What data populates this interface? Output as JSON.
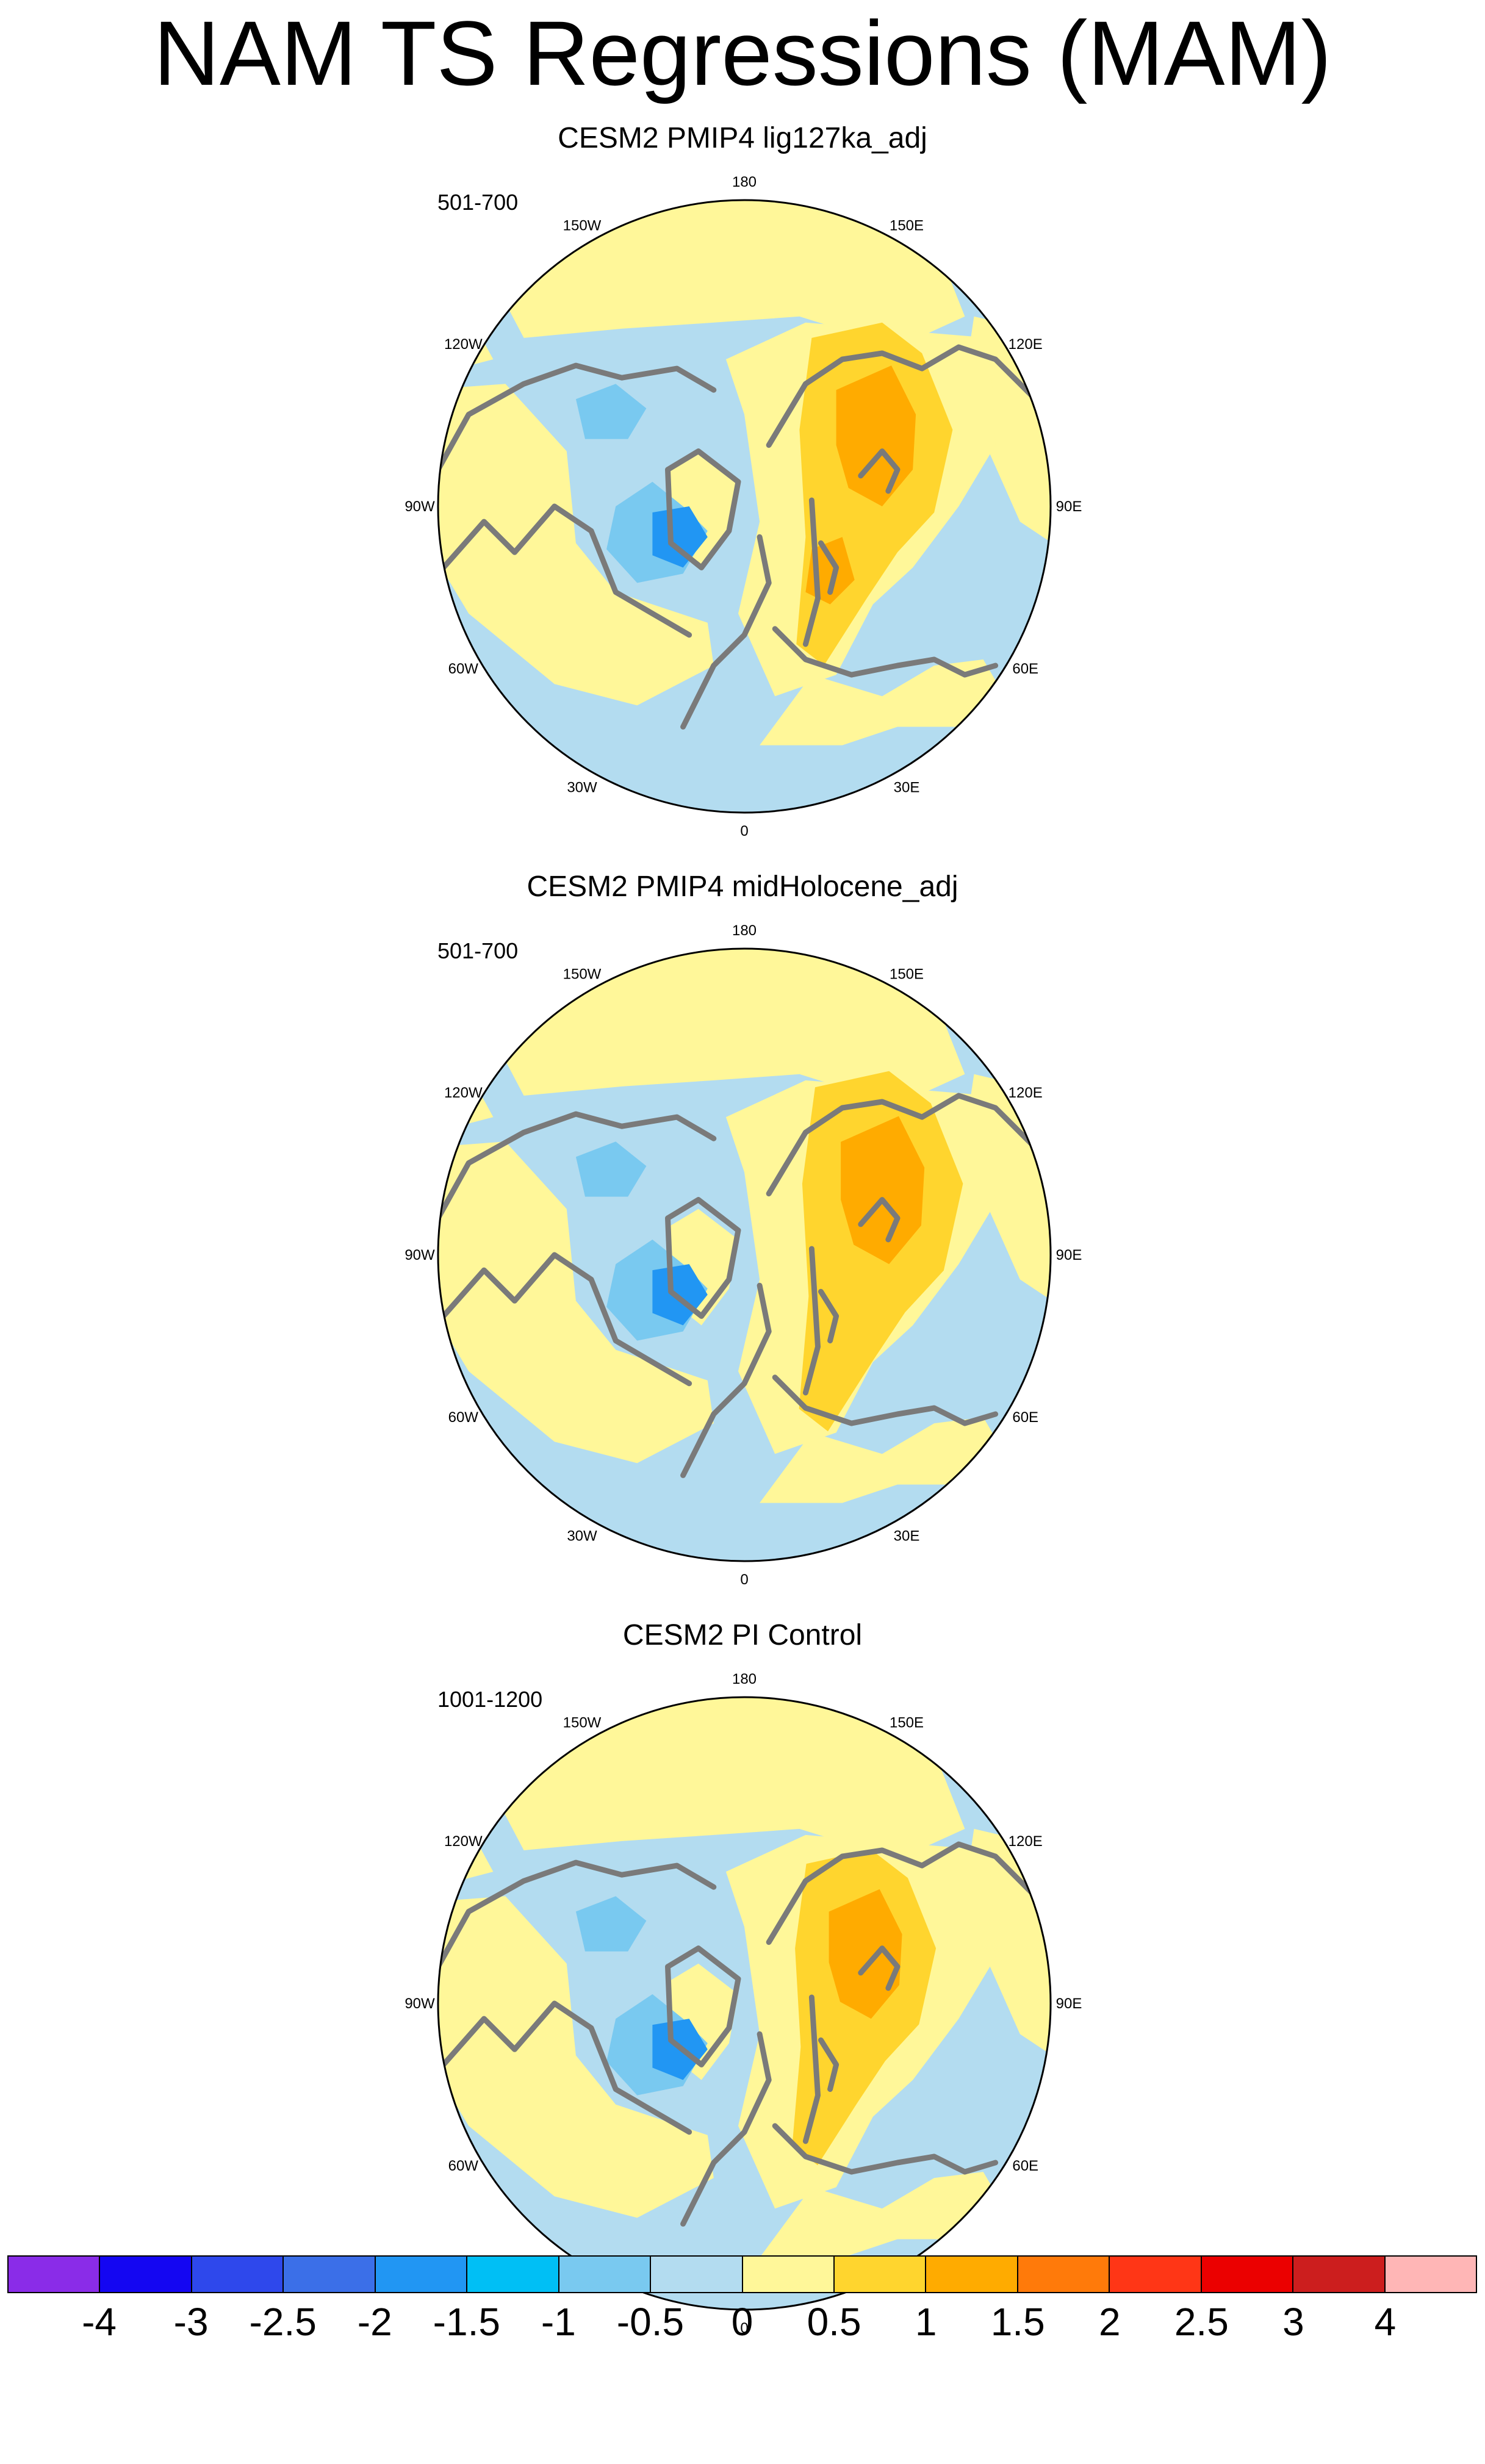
{
  "title": "NAM TS Regressions (MAM)",
  "panels": [
    {
      "title": "CESM2 PMIP4 lig127ka_adj",
      "period": "501-700",
      "variant": 0
    },
    {
      "title": "CESM2 PMIP4 midHolocene_adj",
      "period": "501-700",
      "variant": 1
    },
    {
      "title": "CESM2 PI Control",
      "period": "1001-1200",
      "variant": 2
    }
  ],
  "longitude_labels": [
    "180",
    "150E",
    "120E",
    "90E",
    "60E",
    "30E",
    "0",
    "30W",
    "60W",
    "90W",
    "120W",
    "150W"
  ],
  "colorbar": {
    "colors": [
      "#8a2ce8",
      "#1406f2",
      "#2e48ec",
      "#3b6fe8",
      "#2196f3",
      "#00bff5",
      "#79c9f0",
      "#b3dcf0",
      "#fff799",
      "#ffd52e",
      "#ffab00",
      "#ff7a0a",
      "#ff3616",
      "#eb0000",
      "#cc1e1e",
      "#ffb6b6"
    ],
    "labels": [
      "-4",
      "-3",
      "-2.5",
      "-2",
      "-1.5",
      "-1",
      "-0.5",
      "0",
      "0.5",
      "1",
      "1.5",
      "2",
      "2.5",
      "3",
      "4"
    ]
  },
  "palette": {
    "neg2": "#3b6fe8",
    "neg15": "#2196f3",
    "neg1": "#79c9f0",
    "neg05": "#b3dcf0",
    "pos05": "#fff799",
    "pos1": "#ffd52e",
    "pos15": "#ffab00",
    "coast": "#7a7a7a"
  }
}
